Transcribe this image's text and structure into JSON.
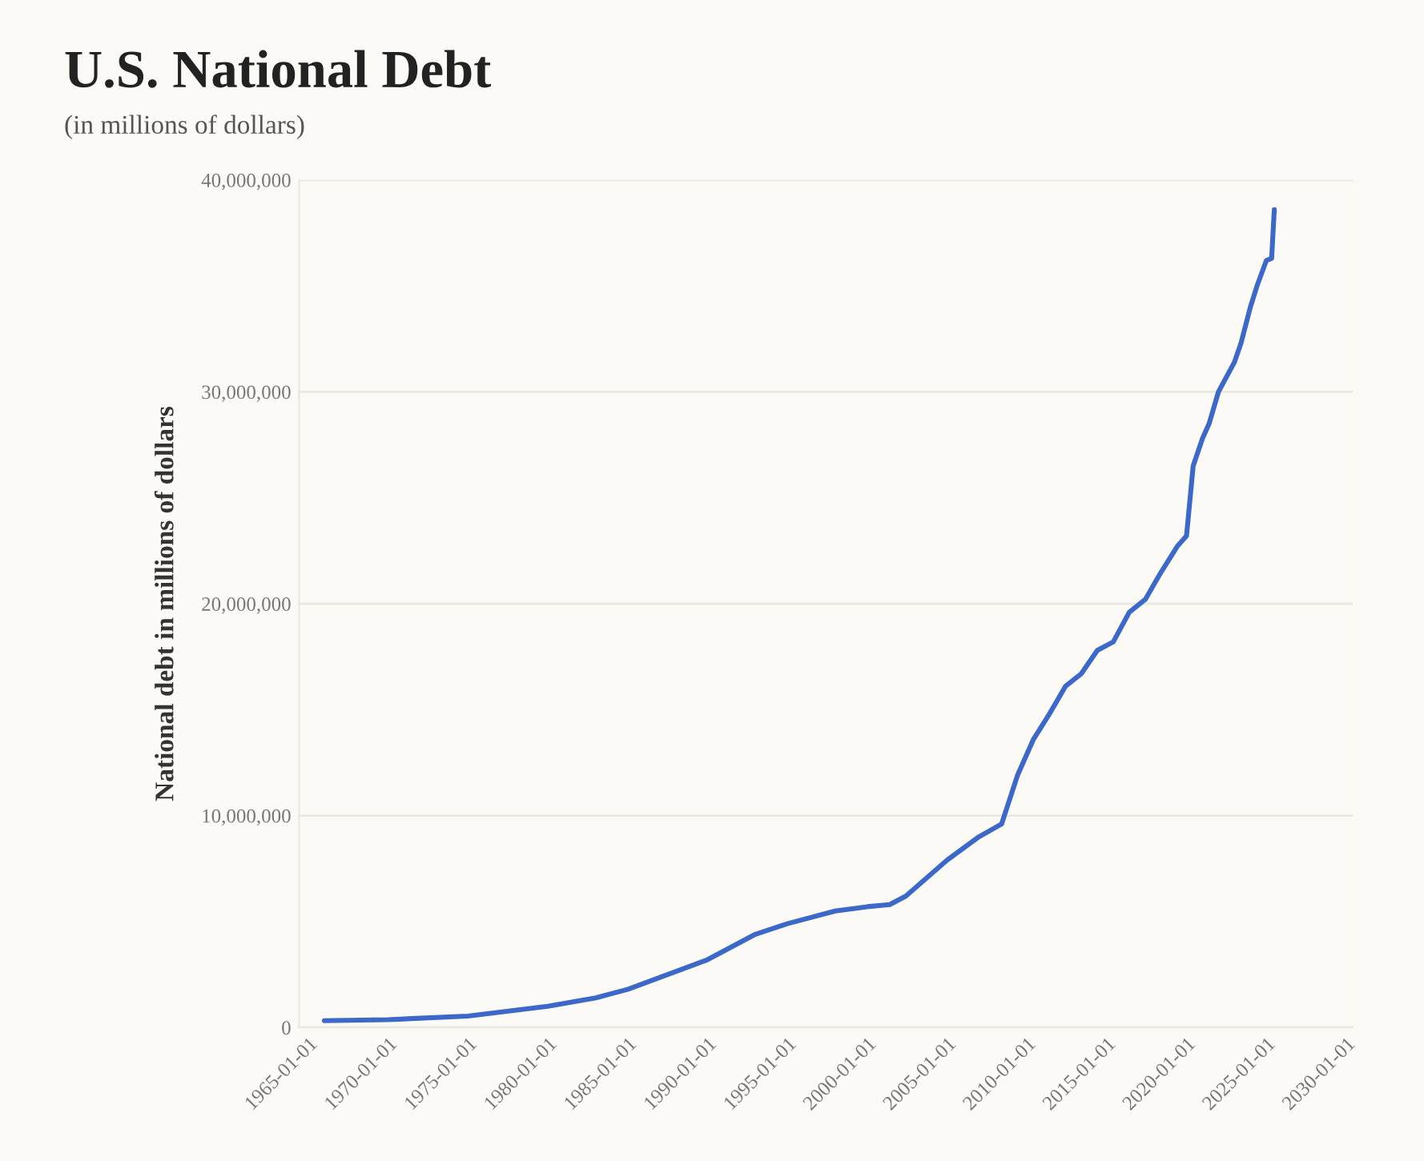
{
  "chart_data": {
    "type": "line",
    "title": "U.S. National Debt",
    "subtitle": "(in millions of dollars)",
    "ylabel": "National debt in millions of dollars",
    "x": [
      "1966-01-01",
      "1970-01-01",
      "1975-01-01",
      "1980-01-01",
      "1983-01-01",
      "1985-01-01",
      "1990-01-01",
      "1993-01-01",
      "1995-01-01",
      "1998-01-01",
      "2000-01-01",
      "2001-06-01",
      "2002-06-01",
      "2005-01-01",
      "2007-01-01",
      "2008-06-01",
      "2009-06-01",
      "2010-06-01",
      "2011-06-01",
      "2012-06-01",
      "2013-06-01",
      "2014-06-01",
      "2015-06-01",
      "2016-06-01",
      "2017-06-01",
      "2018-06-01",
      "2019-06-01",
      "2020-01-01",
      "2020-06-01",
      "2021-01-01",
      "2021-06-01",
      "2022-01-01",
      "2023-01-01",
      "2023-06-01",
      "2024-01-01",
      "2024-06-01",
      "2025-01-01",
      "2025-05-01",
      "2025-07-01"
    ],
    "series": [
      {
        "color": "#3b68c9",
        "values": [
          320000,
          370000,
          540000,
          1000000,
          1400000,
          1800000,
          3200000,
          4400000,
          4900000,
          5500000,
          5700000,
          5800000,
          6200000,
          7900000,
          9000000,
          9600000,
          11900000,
          13600000,
          14800000,
          16100000,
          16700000,
          17800000,
          18200000,
          19600000,
          20200000,
          21500000,
          22700000,
          23200000,
          26500000,
          27800000,
          28500000,
          30000000,
          31400000,
          32300000,
          34000000,
          35000000,
          36200000,
          36300000,
          38600000
        ]
      }
    ],
    "xlim": [
      "1964-06-01",
      "2030-06-01"
    ],
    "xticks": [
      {
        "value": "1965-01-01",
        "label": "1965-01-01"
      },
      {
        "value": "1970-01-01",
        "label": "1970-01-01"
      },
      {
        "value": "1975-01-01",
        "label": "1975-01-01"
      },
      {
        "value": "1980-01-01",
        "label": "1980-01-01"
      },
      {
        "value": "1985-01-01",
        "label": "1985-01-01"
      },
      {
        "value": "1990-01-01",
        "label": "1990-01-01"
      },
      {
        "value": "1995-01-01",
        "label": "1995-01-01"
      },
      {
        "value": "2000-01-01",
        "label": "2000-01-01"
      },
      {
        "value": "2005-01-01",
        "label": "2005-01-01"
      },
      {
        "value": "2010-01-01",
        "label": "2010-01-01"
      },
      {
        "value": "2015-01-01",
        "label": "2015-01-01"
      },
      {
        "value": "2020-01-01",
        "label": "2020-01-01"
      },
      {
        "value": "2025-01-01",
        "label": "2025-01-01"
      },
      {
        "value": "2030-01-01",
        "label": "2030-01-01"
      }
    ],
    "ylim": [
      0,
      40000000
    ],
    "yticks": [
      {
        "value": 0,
        "label": "0"
      },
      {
        "value": 10000000,
        "label": "10,000,000"
      },
      {
        "value": 20000000,
        "label": "20,000,000"
      },
      {
        "value": 30000000,
        "label": "30,000,000"
      },
      {
        "value": 40000000,
        "label": "40,000,000"
      }
    ],
    "grid": "y",
    "marker": "none",
    "line_style": "solid"
  }
}
